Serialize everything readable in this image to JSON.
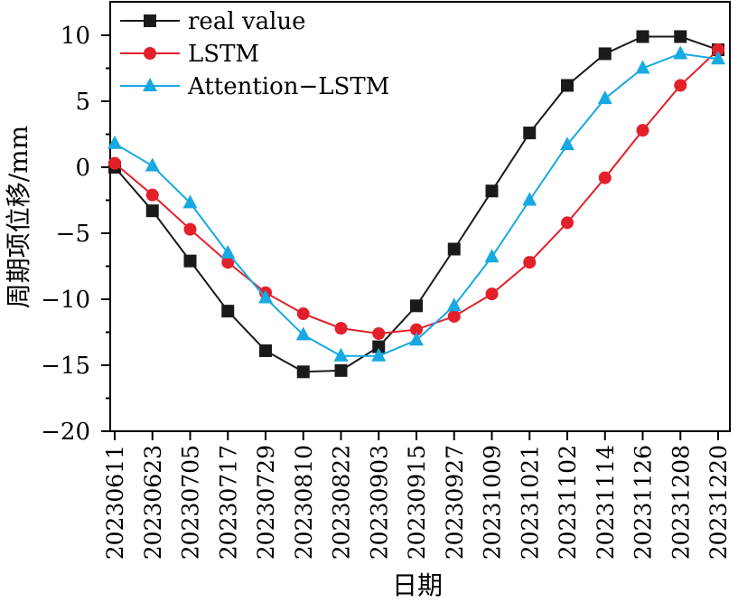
{
  "chart_data": {
    "type": "line",
    "xlabel": "日期",
    "ylabel": "周期项位移/mm",
    "ylim": [
      -20,
      12.5
    ],
    "yticks": [
      -20,
      -15,
      -10,
      -5,
      0,
      5,
      10
    ],
    "ytick_labels": [
      "−20",
      "−15",
      "−10",
      "−5",
      "0",
      "5",
      "10"
    ],
    "categories": [
      "20230611",
      "20230623",
      "20230705",
      "20230717",
      "20230729",
      "20230810",
      "20230822",
      "20230903",
      "20230915",
      "20230927",
      "20231009",
      "20231021",
      "20231102",
      "20231114",
      "20231126",
      "20231208",
      "20231220"
    ],
    "legend_position": "top-left",
    "series": [
      {
        "name": "real value",
        "color": "#1a1a1a",
        "marker": "square",
        "values": [
          0,
          -3.3,
          -7.1,
          -10.9,
          -13.9,
          -15.5,
          -15.4,
          -13.6,
          -10.5,
          -6.2,
          -1.8,
          2.6,
          6.2,
          8.6,
          9.9,
          9.9,
          8.9
        ]
      },
      {
        "name": "LSTM",
        "color": "#e3202a",
        "marker": "circle",
        "values": [
          0.3,
          -2.1,
          -4.7,
          -7.2,
          -9.5,
          -11.1,
          -12.2,
          -12.6,
          -12.3,
          -11.3,
          -9.6,
          -7.2,
          -4.2,
          -0.8,
          2.8,
          6.2,
          8.9
        ]
      },
      {
        "name": "Attention−LSTM",
        "color": "#17a9e1",
        "marker": "triangle",
        "values": [
          1.8,
          0.1,
          -2.7,
          -6.5,
          -9.9,
          -12.7,
          -14.3,
          -14.3,
          -13.1,
          -10.5,
          -6.8,
          -2.5,
          1.7,
          5.2,
          7.5,
          8.6,
          8.2
        ]
      }
    ]
  }
}
